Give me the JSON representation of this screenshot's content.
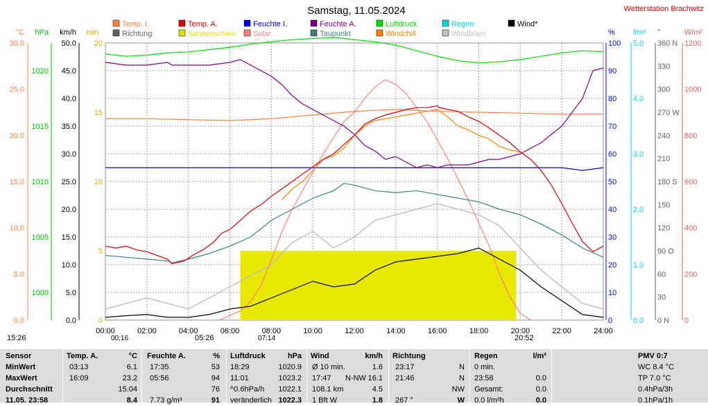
{
  "title": "Samstag, 11.05.2024",
  "station": "Wetterstation Brachwitz",
  "legend": [
    {
      "label": "Temp. I.",
      "color": "#ff8040"
    },
    {
      "label": "Temp. A.",
      "color": "#e00000"
    },
    {
      "label": "Feuchte I.",
      "color": "#0000e0"
    },
    {
      "label": "Feuchte A.",
      "color": "#800080"
    },
    {
      "label": "Luftdruck",
      "color": "#00e000"
    },
    {
      "label": "Regen",
      "color": "#00d8d8"
    },
    {
      "label": "Wind*",
      "color": "#000000"
    },
    {
      "label": "Richtung",
      "color": "#606060"
    },
    {
      "label": "Sonnenschein",
      "color": "#e0e000"
    },
    {
      "label": "Solar",
      "color": "#ff8080"
    },
    {
      "label": "Taupunkt",
      "color": "#408080"
    },
    {
      "label": "Windchill",
      "color": "#ff8000"
    },
    {
      "label": "Windböen",
      "color": "#c0c0c0"
    }
  ],
  "axes": {
    "temp": {
      "unit": "°C",
      "ticks": [
        "30.0",
        "25.0",
        "20.0",
        "15.0",
        "10.0",
        "5.0",
        "0.0"
      ],
      "color": "#ff8040"
    },
    "press": {
      "unit": "hPa",
      "ticks": [
        "1020",
        "1015",
        "1010",
        "1005",
        "1000"
      ],
      "color": "#00c000"
    },
    "wind": {
      "unit": "km/h",
      "ticks": [
        "50.0",
        "45.0",
        "40.0",
        "35.0",
        "30.0",
        "25.0",
        "20.0",
        "15.0",
        "10.0",
        "5.0",
        "0.0"
      ],
      "color": "#000000"
    },
    "sun": {
      "unit": "min",
      "ticks": [
        "20",
        "15",
        "10",
        "5",
        "0"
      ],
      "color": "#d0b000"
    },
    "hum": {
      "unit": "%",
      "ticks": [
        "100",
        "90",
        "80",
        "70",
        "60",
        "50",
        "40",
        "30",
        "20",
        "10",
        "0"
      ],
      "color": "#0000e0"
    },
    "rain": {
      "unit": "l/m²",
      "ticks": [
        "5.0",
        "4.0",
        "3.0",
        "2.0",
        "1.0",
        "0.0"
      ],
      "color": "#00d8d8"
    },
    "dir": {
      "unit": "°",
      "ticks": [
        "360 N",
        "330",
        "300",
        "270 W",
        "240",
        "210",
        "180 S",
        "150",
        "120",
        "90 O",
        "60",
        "30",
        "0 N"
      ],
      "color": "#606060"
    },
    "solar": {
      "unit": "W/m²",
      "ticks": [
        "1200",
        "1000",
        "800",
        "600",
        "400",
        "200",
        "0"
      ],
      "color": "#e06060"
    }
  },
  "x_ticks": [
    "00:00",
    "02:00",
    "04:00",
    "06:00",
    "08:00",
    "10:00",
    "12:00",
    "14:00",
    "16:00",
    "18:00",
    "20:00",
    "22:00",
    "24:00"
  ],
  "sun_events": {
    "moonrise": "15:26",
    "moonset": "00:16",
    "sunrise": "05:26",
    "sunset": "20:52",
    "civil_start": "07:14"
  },
  "chart_data": {
    "type": "line",
    "x_unit": "hours",
    "x_range": [
      0,
      24
    ],
    "series": [
      {
        "name": "Temp. A.",
        "axis": "temp",
        "x": [
          0,
          0.5,
          1,
          1.5,
          2,
          2.5,
          3,
          3.2,
          3.8,
          4.2,
          4.7,
          5.2,
          5.6,
          6,
          6.5,
          7,
          7.5,
          8,
          8.5,
          9,
          9.5,
          10,
          10.5,
          11,
          11.5,
          12,
          12.5,
          13,
          13.5,
          14,
          14.5,
          15,
          15.5,
          16,
          16.1,
          16.5,
          17,
          17.5,
          18,
          18.5,
          19,
          19.5,
          20,
          20.5,
          21,
          21.5,
          22,
          22.5,
          23,
          23.5,
          24
        ],
        "y": [
          8.0,
          7.8,
          8.0,
          7.6,
          7.4,
          7.0,
          6.6,
          6.1,
          6.4,
          7.0,
          7.6,
          8.4,
          9.4,
          9.8,
          10.8,
          11.8,
          12.5,
          13.4,
          14.2,
          15.0,
          15.8,
          16.6,
          17.4,
          18.0,
          19.0,
          20.0,
          21.2,
          21.8,
          22.2,
          22.5,
          22.8,
          23.0,
          23.0,
          23.2,
          23.0,
          22.8,
          22.6,
          22.0,
          21.5,
          20.8,
          20.0,
          19.2,
          18.2,
          17.4,
          16.2,
          14.6,
          12.6,
          10.5,
          8.5,
          7.4,
          8.0
        ]
      },
      {
        "name": "Taupunkt",
        "axis": "temp",
        "x": [
          0,
          1,
          2,
          3,
          3.2,
          4,
          5,
          6,
          7,
          8,
          9,
          10,
          11,
          11.5,
          12,
          13,
          14,
          15,
          16,
          17,
          18,
          19,
          20,
          21,
          22,
          23,
          24
        ],
        "y": [
          7.0,
          6.8,
          6.6,
          6.4,
          6.2,
          6.6,
          7.2,
          8.0,
          9.0,
          10.8,
          12.0,
          13.2,
          14.0,
          14.8,
          14.6,
          14.0,
          13.8,
          14.0,
          13.6,
          13.2,
          12.8,
          12.0,
          11.4,
          10.4,
          9.2,
          7.8,
          6.8
        ]
      },
      {
        "name": "Temp. I.",
        "axis": "temp",
        "x": [
          0,
          2,
          4,
          6,
          8,
          10,
          12,
          14,
          16,
          18,
          20,
          22,
          24
        ],
        "y": [
          21.8,
          21.8,
          21.7,
          21.6,
          21.8,
          22.2,
          22.6,
          22.8,
          22.6,
          22.5,
          22.4,
          22.3,
          22.3
        ]
      },
      {
        "name": "Windchill",
        "axis": "temp",
        "x": [
          8.5,
          9,
          9.5,
          10,
          10.5,
          11,
          11.5,
          12,
          12.5,
          13,
          13.5,
          14,
          14.5,
          15,
          15.5,
          16,
          16.5,
          17,
          17.5,
          18,
          18.5,
          19,
          19.5,
          20
        ],
        "y": [
          13.0,
          14.2,
          15.0,
          16.2,
          17.4,
          17.8,
          18.6,
          20.0,
          21.0,
          21.6,
          21.8,
          22.0,
          22.2,
          22.4,
          22.6,
          22.8,
          22.0,
          21.0,
          20.6,
          20.0,
          19.6,
          18.8,
          18.4,
          18.2
        ]
      },
      {
        "name": "Feuchte A.",
        "axis": "hum",
        "x": [
          0,
          1,
          2,
          3,
          3.2,
          4,
          5,
          6,
          6.5,
          7,
          7.5,
          8,
          8.5,
          9,
          9.5,
          10,
          10.5,
          11,
          11.5,
          12,
          12.5,
          13,
          13.5,
          14,
          14.5,
          15,
          15.5,
          16,
          16.5,
          17,
          17.5,
          18,
          18.5,
          19,
          19.5,
          20,
          20.5,
          21,
          21.5,
          22,
          22.5,
          23,
          23.5,
          24
        ],
        "y": [
          93,
          92,
          92,
          93,
          92,
          92,
          92,
          93,
          94,
          92,
          90,
          88,
          85,
          81,
          78,
          76,
          74,
          72,
          70,
          67,
          63,
          61,
          58,
          59,
          57,
          55,
          56,
          55,
          56,
          56,
          56,
          57,
          58,
          58,
          59,
          60,
          62,
          64,
          67,
          70,
          75,
          80,
          90,
          91
        ]
      },
      {
        "name": "Feuchte I.",
        "axis": "hum",
        "x": [
          0,
          6,
          8,
          9,
          10,
          12,
          14,
          16,
          18,
          20,
          22,
          23,
          24
        ],
        "y": [
          55,
          55,
          55,
          55,
          55,
          55,
          55,
          55,
          55,
          55,
          55,
          54,
          55
        ]
      },
      {
        "name": "Luftdruck",
        "axis": "press",
        "x": [
          0,
          1,
          2,
          3,
          4,
          5,
          6,
          7,
          8,
          9,
          10,
          11,
          12,
          13,
          14,
          15,
          16,
          17,
          18,
          19,
          20,
          21,
          22,
          23,
          24
        ],
        "y": [
          1021.5,
          1021.3,
          1021.4,
          1021.6,
          1021.7,
          1021.9,
          1022.1,
          1022.4,
          1022.6,
          1022.8,
          1022.9,
          1023.0,
          1022.8,
          1022.6,
          1022.3,
          1021.8,
          1021.3,
          1020.9,
          1020.7,
          1020.8,
          1021.0,
          1021.3,
          1021.6,
          1021.8,
          1021.7
        ]
      },
      {
        "name": "Wind*",
        "axis": "wind",
        "x": [
          0,
          1,
          2,
          3,
          4,
          5,
          6,
          7,
          8,
          9,
          10,
          11,
          12,
          13,
          14,
          15,
          16,
          17,
          18,
          19,
          20,
          21,
          22,
          23,
          24
        ],
        "y": [
          0.5,
          0.8,
          1.0,
          0.5,
          0.5,
          1.0,
          2.0,
          2.5,
          4.0,
          5.5,
          7.0,
          6.0,
          6.5,
          9.0,
          10.5,
          11.0,
          11.5,
          12.0,
          13.0,
          11.0,
          9.0,
          6.0,
          3.5,
          1.0,
          0.5
        ]
      },
      {
        "name": "Windböen",
        "axis": "wind",
        "x": [
          0,
          1,
          2,
          3,
          4,
          5,
          6,
          7,
          8,
          9,
          10,
          11,
          12,
          13,
          14,
          15,
          16,
          17,
          18,
          19,
          20,
          21,
          22,
          23,
          24
        ],
        "y": [
          2,
          3,
          4,
          3,
          2,
          4,
          6,
          8,
          10,
          14,
          16,
          13,
          15,
          18,
          19,
          20,
          21,
          20,
          19,
          17,
          13,
          9,
          6,
          3,
          2
        ]
      },
      {
        "name": "Solar",
        "axis": "solar",
        "x": [
          5.5,
          6.5,
          7,
          7.5,
          8,
          8.5,
          9,
          9.5,
          10,
          10.5,
          11,
          11.5,
          12,
          12.5,
          13,
          13.5,
          14,
          14.5,
          15,
          15.5,
          16,
          16.5,
          17,
          17.5,
          18,
          18.5,
          19,
          19.5,
          20,
          20.5
        ],
        "y": [
          0,
          40,
          80,
          150,
          260,
          380,
          480,
          560,
          640,
          720,
          790,
          860,
          900,
          960,
          1010,
          1040,
          1020,
          980,
          920,
          860,
          780,
          700,
          610,
          520,
          420,
          320,
          200,
          100,
          30,
          0
        ]
      },
      {
        "name": "Sonnenschein",
        "axis": "sun",
        "x": [
          6.5,
          19.8
        ],
        "y": [
          5,
          5
        ]
      }
    ]
  },
  "table": {
    "header": {
      "sensor": "Sensor",
      "temp": "Temp. A.",
      "temp_unit": "°C",
      "hum": "Feuchte A.",
      "hum_unit": "%",
      "press": "Luftdruck",
      "press_unit": "hPa",
      "wind": "Wind",
      "wind_unit": "km/h",
      "dir": "Richtung",
      "rain": "Regen",
      "rain_unit": "l/m²",
      "pmv": "PMV 0:7"
    },
    "rows": [
      {
        "label": "MinWert",
        "t_time": "03:13",
        "t_val": "6.1",
        "h_time": "17:35",
        "h_val": "53",
        "p_time": "18:29",
        "p_val": "1020.9",
        "w_l": "Ø 10 min.",
        "w_val": "1.6",
        "d_time": "23:17",
        "d_val": "N",
        "r_l": "0 min.",
        "r_val": "",
        "x": "WC 8.4 °C"
      },
      {
        "label": "MaxWert",
        "t_time": "16:09",
        "t_val": "23.2",
        "h_time": "05:56",
        "h_val": "94",
        "p_time": "11:01",
        "p_val": "1023.2",
        "w_l": "17:47",
        "w_m": "N-NW",
        "w_val": "16.1",
        "d_time": "21:46",
        "d_val": "N",
        "r_l": "23:58",
        "r_val": "0.0",
        "x": "TP 7.0 °C"
      },
      {
        "label": "Durchschnitt",
        "t_time": "",
        "t_val": "15.04",
        "h_time": "",
        "h_val": "76",
        "p_time": "^0.6hPa/h",
        "p_val": "1022.1",
        "w_l": "108.1 km",
        "w_val": "4.5",
        "d_time": "",
        "d_val": "NW",
        "r_l": "Gesamt:",
        "r_val": "0.0",
        "x": "0.4hPa/3h"
      },
      {
        "label": "11.05. 23:58",
        "t_time": "",
        "t_val": "8.4",
        "h_time": "7.73 g/m³",
        "h_val": "91",
        "p_time": "veränderlich",
        "p_val": "1022.3",
        "w_l": "1 Bft W",
        "w_val": "1.8",
        "d_time": "267 °",
        "d_val": "W",
        "r_l": "0.0 l/m²h",
        "r_val": "0.0",
        "x": "0.1hPa/1h"
      }
    ]
  }
}
